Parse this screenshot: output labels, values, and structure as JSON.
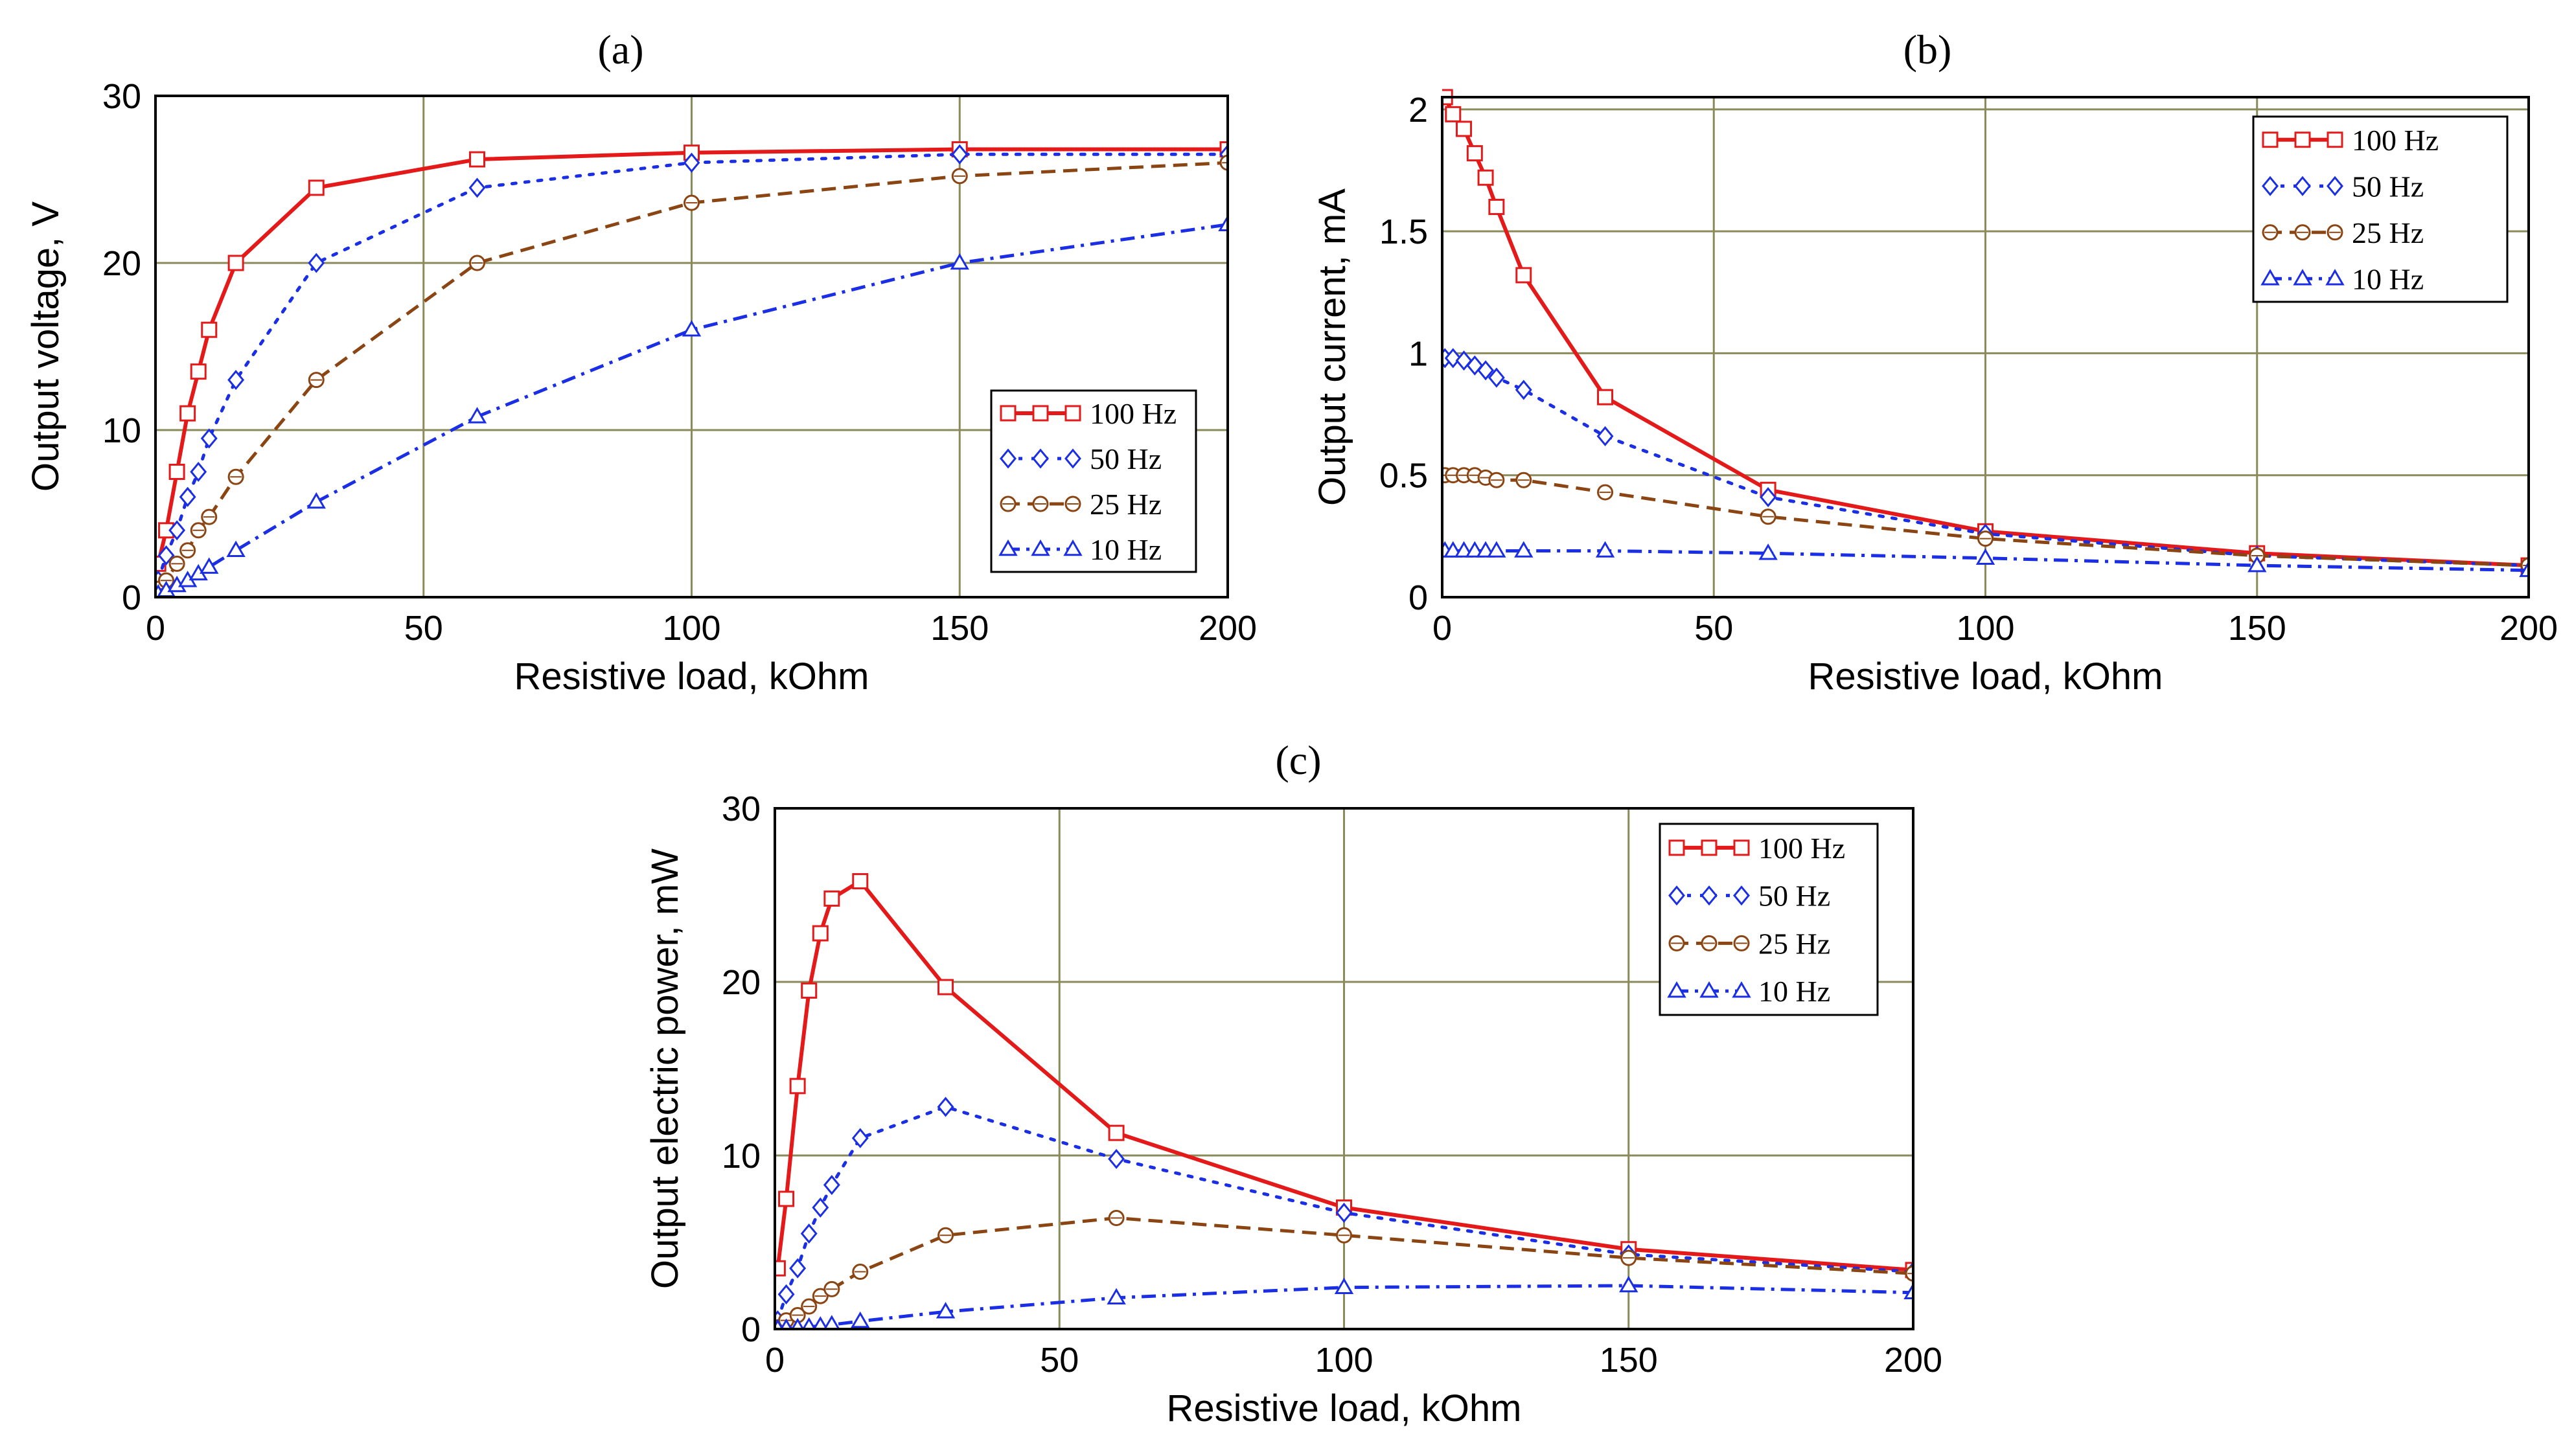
{
  "figure": {
    "panels": [
      "a",
      "b",
      "c"
    ],
    "colors": {
      "grid": "#8a8a5a",
      "100 Hz": "#e41a1a",
      "50 Hz": "#1a2ee6",
      "25 Hz": "#8b4513",
      "10 Hz": "#1a2ee6"
    }
  },
  "chart_data": [
    {
      "panel": "(a)",
      "type": "line",
      "xlabel": "Resistive load, kOhm",
      "ylabel": "Output voltage, V",
      "xlim": [
        0,
        200
      ],
      "ylim": [
        0,
        30
      ],
      "xticks": [
        "0",
        "50",
        "100",
        "150",
        "200"
      ],
      "yticks": [
        "0",
        "10",
        "20",
        "30"
      ],
      "grid": true,
      "legend": "bottom-right",
      "series": [
        {
          "name": "100 Hz",
          "marker": "square",
          "dash": "solid",
          "x": [
            0.5,
            2,
            4,
            6,
            8,
            10,
            15,
            30,
            60,
            100,
            150,
            200
          ],
          "y": [
            2,
            4,
            7.5,
            11,
            13.5,
            16,
            20,
            24.5,
            26.2,
            26.6,
            26.8,
            26.8
          ]
        },
        {
          "name": "50 Hz",
          "marker": "diamond",
          "dash": "dot",
          "x": [
            0.5,
            2,
            4,
            6,
            8,
            10,
            15,
            30,
            60,
            100,
            150,
            200
          ],
          "y": [
            1,
            2.5,
            4,
            6,
            7.5,
            9.5,
            13,
            20,
            24.5,
            26,
            26.5,
            26.5
          ]
        },
        {
          "name": "25 Hz",
          "marker": "circle",
          "dash": "dash",
          "x": [
            0.5,
            2,
            4,
            6,
            8,
            10,
            15,
            30,
            60,
            100,
            150,
            200
          ],
          "y": [
            0.5,
            1,
            2,
            2.8,
            4,
            4.8,
            7.2,
            13,
            20,
            23.6,
            25.2,
            26
          ]
        },
        {
          "name": "10 Hz",
          "marker": "triangle",
          "dash": "dashdot",
          "x": [
            0.5,
            2,
            4,
            6,
            8,
            10,
            15,
            30,
            60,
            100,
            150,
            200
          ],
          "y": [
            0.2,
            0.4,
            0.7,
            1,
            1.4,
            1.8,
            2.8,
            5.7,
            10.8,
            16,
            20,
            22.3
          ]
        }
      ]
    },
    {
      "panel": "(b)",
      "type": "line",
      "xlabel": "Resistive load, kOhm",
      "ylabel": "Output current, mA",
      "xlim": [
        0,
        200
      ],
      "ylim": [
        0,
        2.05
      ],
      "xticks": [
        "0",
        "50",
        "100",
        "150",
        "200"
      ],
      "yticks": [
        "0",
        "0.5",
        "1",
        "1.5",
        "2"
      ],
      "grid": true,
      "legend": "top-right",
      "series": [
        {
          "name": "100 Hz",
          "marker": "square",
          "dash": "solid",
          "x": [
            0.5,
            2,
            4,
            6,
            8,
            10,
            15,
            30,
            60,
            100,
            150,
            200
          ],
          "y": [
            2.05,
            1.98,
            1.92,
            1.82,
            1.72,
            1.6,
            1.32,
            0.82,
            0.44,
            0.27,
            0.18,
            0.13
          ]
        },
        {
          "name": "50 Hz",
          "marker": "diamond",
          "dash": "dot",
          "x": [
            0.5,
            2,
            4,
            6,
            8,
            10,
            15,
            30,
            60,
            100,
            150,
            200
          ],
          "y": [
            0.98,
            0.98,
            0.97,
            0.95,
            0.93,
            0.9,
            0.85,
            0.66,
            0.41,
            0.26,
            0.17,
            0.13
          ]
        },
        {
          "name": "25 Hz",
          "marker": "circle",
          "dash": "dash",
          "x": [
            0.5,
            2,
            4,
            6,
            8,
            10,
            15,
            30,
            60,
            100,
            150,
            200
          ],
          "y": [
            0.5,
            0.5,
            0.5,
            0.5,
            0.49,
            0.48,
            0.48,
            0.43,
            0.33,
            0.24,
            0.17,
            0.13
          ]
        },
        {
          "name": "10 Hz",
          "marker": "triangle",
          "dash": "dashdot",
          "x": [
            0.5,
            2,
            4,
            6,
            8,
            10,
            15,
            30,
            60,
            100,
            150,
            200
          ],
          "y": [
            0.19,
            0.19,
            0.19,
            0.19,
            0.19,
            0.19,
            0.19,
            0.19,
            0.18,
            0.16,
            0.13,
            0.11
          ]
        }
      ]
    },
    {
      "panel": "(c)",
      "type": "line",
      "xlabel": "Resistive load, kOhm",
      "ylabel": "Output electric power, mW",
      "xlim": [
        0,
        200
      ],
      "ylim": [
        0,
        30
      ],
      "xticks": [
        "0",
        "50",
        "100",
        "150",
        "200"
      ],
      "yticks": [
        "0",
        "10",
        "20",
        "30"
      ],
      "grid": true,
      "legend": "top-right",
      "series": [
        {
          "name": "100 Hz",
          "marker": "square",
          "dash": "solid",
          "x": [
            0.5,
            2,
            4,
            6,
            8,
            10,
            15,
            30,
            60,
            100,
            150,
            200
          ],
          "y": [
            3.5,
            7.5,
            14,
            19.5,
            22.8,
            24.8,
            25.8,
            19.7,
            11.3,
            7,
            4.6,
            3.4
          ]
        },
        {
          "name": "50 Hz",
          "marker": "diamond",
          "dash": "dot",
          "x": [
            0.5,
            2,
            4,
            6,
            8,
            10,
            15,
            30,
            60,
            100,
            150,
            200
          ],
          "y": [
            0.5,
            2,
            3.5,
            5.5,
            7,
            8.3,
            11,
            12.8,
            9.8,
            6.7,
            4.3,
            3.3
          ]
        },
        {
          "name": "25 Hz",
          "marker": "circle",
          "dash": "dash",
          "x": [
            0.5,
            2,
            4,
            6,
            8,
            10,
            15,
            30,
            60,
            100,
            150,
            200
          ],
          "y": [
            0.1,
            0.5,
            0.8,
            1.3,
            1.9,
            2.3,
            3.3,
            5.4,
            6.4,
            5.4,
            4.1,
            3.2
          ]
        },
        {
          "name": "10 Hz",
          "marker": "triangle",
          "dash": "dashdot",
          "x": [
            0.5,
            2,
            4,
            6,
            8,
            10,
            15,
            30,
            60,
            100,
            150,
            200
          ],
          "y": [
            0.02,
            0.05,
            0.08,
            0.12,
            0.18,
            0.25,
            0.45,
            1.0,
            1.8,
            2.4,
            2.5,
            2.1
          ]
        }
      ]
    }
  ]
}
